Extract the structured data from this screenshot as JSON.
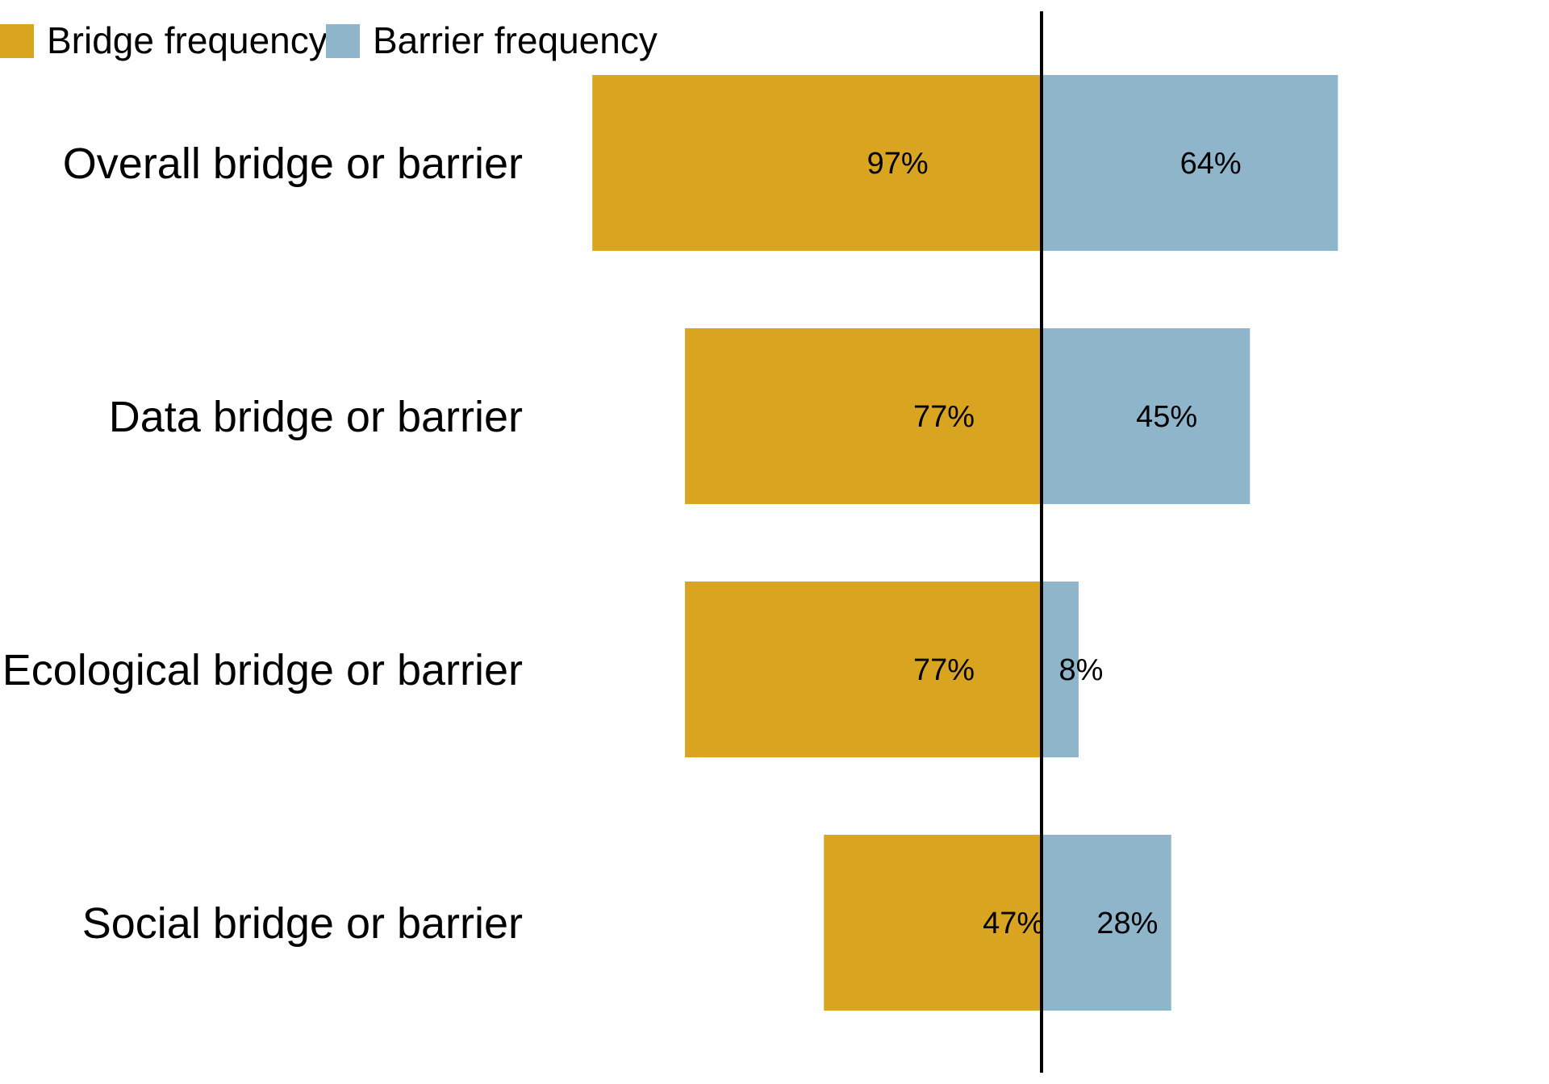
{
  "chart_data": {
    "type": "bar",
    "orientation": "horizontal-diverging",
    "categories": [
      "Overall bridge or barrier",
      "Data bridge or barrier",
      "Ecological bridge or barrier",
      "Social bridge or barrier"
    ],
    "series": [
      {
        "name": "Bridge frequency",
        "color": "#D9A521",
        "direction": "left",
        "values": [
          97,
          77,
          77,
          47
        ],
        "labels": [
          "97%",
          "77%",
          "77%",
          "47%"
        ]
      },
      {
        "name": "Barrier frequency",
        "color": "#8FB5CB",
        "direction": "right",
        "values": [
          64,
          45,
          8,
          28
        ],
        "labels": [
          "64%",
          "45%",
          "8%",
          "28%"
        ]
      }
    ],
    "value_unit": "%",
    "xlim": [
      -100,
      100
    ],
    "zero_line": true,
    "grid": false,
    "legend_position": "top-left",
    "title": "",
    "xlabel": "",
    "ylabel": ""
  }
}
